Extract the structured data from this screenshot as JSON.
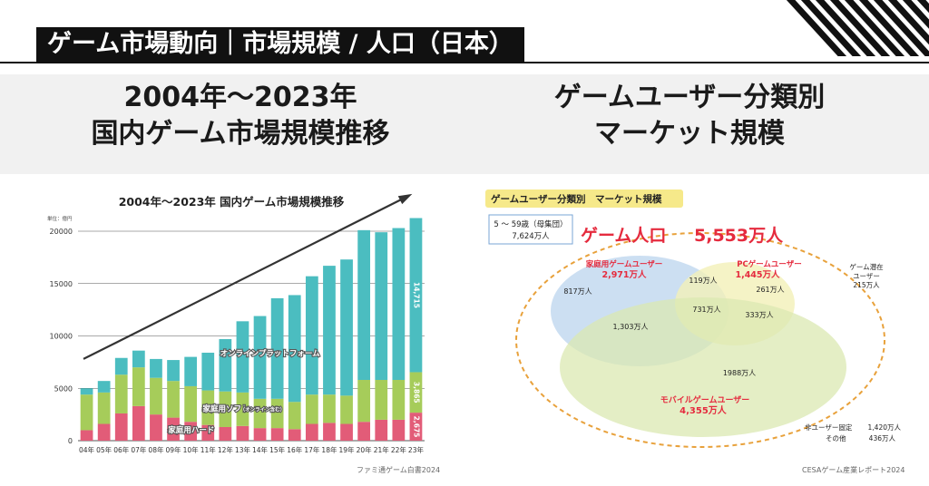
{
  "header": {
    "title": "ゲーム市場動向｜市場規模 / 人口（日本）"
  },
  "left": {
    "heading_line1": "2004年〜2023年",
    "heading_line2": "国内ゲーム市場規模推移"
  },
  "right": {
    "heading_line1": "ゲームユーザー分類別",
    "heading_line2": "マーケット規模"
  },
  "chart_data": {
    "type": "bar",
    "stacked": true,
    "title": "2004年〜2023年 国内ゲーム市場規模推移",
    "unit_label": "単位：億円",
    "categories": [
      "04年",
      "05年",
      "06年",
      "07年",
      "08年",
      "09年",
      "10年",
      "11年",
      "12年",
      "13年",
      "14年",
      "15年",
      "16年",
      "17年",
      "18年",
      "19年",
      "20年",
      "21年",
      "22年",
      "23年"
    ],
    "ylim": [
      0,
      20000
    ],
    "yticks": [
      "0",
      "5000",
      "10000",
      "15000",
      "20000"
    ],
    "grid": true,
    "series": [
      {
        "name": "家庭用ハード",
        "color": "#e25c78",
        "values": [
          1000,
          1600,
          2600,
          3300,
          2500,
          2200,
          1800,
          1500,
          1300,
          1400,
          1200,
          1200,
          1100,
          1600,
          1700,
          1600,
          1800,
          2000,
          2000,
          2675
        ]
      },
      {
        "name": "家庭用ソフト（オンライン含む）",
        "label_main": "家庭用ソフト",
        "label_sub": "（オンライン含む）",
        "color": "#a6cc5a",
        "values": [
          3400,
          3000,
          3700,
          3700,
          3500,
          3500,
          3400,
          3300,
          3400,
          3200,
          2800,
          2800,
          2600,
          2800,
          2700,
          2700,
          4000,
          3800,
          3800,
          3865
        ]
      },
      {
        "name": "オンラインプラットフォーム",
        "color": "#4bbdc0",
        "values": [
          600,
          1100,
          1600,
          1600,
          1800,
          2000,
          2800,
          3600,
          5000,
          6800,
          7900,
          9600,
          10200,
          11300,
          12300,
          13000,
          14300,
          14100,
          14500,
          14715
        ]
      }
    ],
    "data_labels": [
      "14,715",
      "3,865",
      "2,675"
    ],
    "trend_arrow": true,
    "source": "ファミ通ゲーム白書2024"
  },
  "venn": {
    "title": "ゲームユーザー分類別　マーケット規模",
    "population_label": "5 〜 59歳（母集団）",
    "population_value": "7,624万人",
    "game_population_title": "ゲーム人口",
    "game_population_value": "5,553万人",
    "home_title": "家庭用ゲームユーザー",
    "home_value": "2,971万人",
    "pc_title": "PCゲームユーザー",
    "pc_value": "1,445万人",
    "mobile_title": "モバイルゲームユーザー",
    "mobile_value": "4,355万人",
    "home_only": "817万人",
    "home_pc": "119万人",
    "pc_only": "261万人",
    "home_mobile": "1,303万人",
    "all_three": "731万人",
    "pc_mobile": "333万人",
    "mobile_only": "1988万人",
    "potential_line1": "ゲーム潜在",
    "potential_line2": "ユーザー",
    "potential_value": "215万人",
    "non_user_label": "非ユーザー固定",
    "non_user_value": "1,420万人",
    "other_label": "その他",
    "other_value": "436万人",
    "colors": {
      "home": "#c3d9f0",
      "pc": "#f3f0b8",
      "mobile": "#dbe8b2",
      "accent": "#e52b3e",
      "dash": "#e8a13b",
      "badge": "#f6e98a"
    },
    "source": "CESAゲーム産業レポート2024"
  }
}
